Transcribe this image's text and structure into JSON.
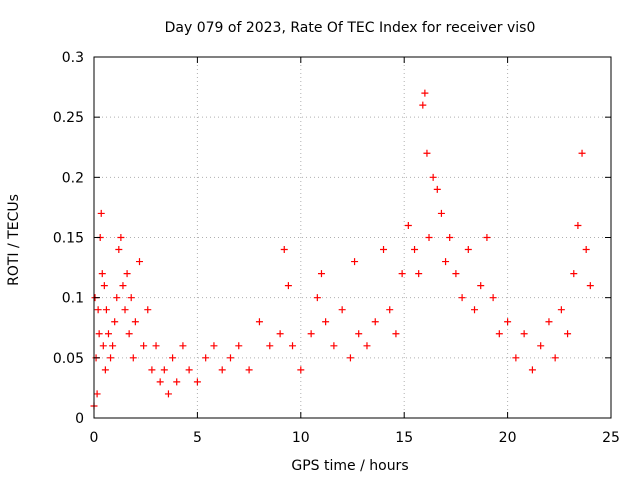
{
  "chart_data": {
    "type": "scatter",
    "title": "Day 079 of 2023, Rate Of TEC Index for receiver vis0",
    "xlabel": "GPS time / hours",
    "ylabel": "ROTI / TECUs",
    "xlim": [
      0,
      25
    ],
    "ylim": [
      0,
      0.3
    ],
    "x_ticks": [
      0,
      5,
      10,
      15,
      20,
      25
    ],
    "x_tick_labels": [
      "0",
      "5",
      "10",
      "15",
      "20",
      "25"
    ],
    "y_ticks": [
      0,
      0.05,
      0.1,
      0.15,
      0.2,
      0.25,
      0.3
    ],
    "y_tick_labels": [
      "0",
      "0.05",
      "0.1",
      "0.15",
      "0.2",
      "0.25",
      "0.3"
    ],
    "grid": true,
    "marker": "+",
    "color": "#ff0000",
    "series": [
      {
        "name": "ROTI",
        "x": [
          0.0,
          0.05,
          0.1,
          0.15,
          0.2,
          0.25,
          0.3,
          0.35,
          0.4,
          0.45,
          0.5,
          0.55,
          0.6,
          0.7,
          0.8,
          0.9,
          1.0,
          1.1,
          1.2,
          1.3,
          1.4,
          1.5,
          1.6,
          1.7,
          1.8,
          1.9,
          2.0,
          2.2,
          2.4,
          2.6,
          2.8,
          3.0,
          3.2,
          3.4,
          3.6,
          3.8,
          4.0,
          4.3,
          4.6,
          5.0,
          5.4,
          5.8,
          6.2,
          6.6,
          7.0,
          7.5,
          8.0,
          8.5,
          9.0,
          9.2,
          9.4,
          9.6,
          10.0,
          10.5,
          10.8,
          11.0,
          11.2,
          11.6,
          12.0,
          12.4,
          12.6,
          12.8,
          13.2,
          13.6,
          14.0,
          14.3,
          14.6,
          14.9,
          15.2,
          15.5,
          15.7,
          15.9,
          16.0,
          16.1,
          16.2,
          16.4,
          16.6,
          16.8,
          17.0,
          17.2,
          17.5,
          17.8,
          18.1,
          18.4,
          18.7,
          19.0,
          19.3,
          19.6,
          20.0,
          20.4,
          20.8,
          21.2,
          21.6,
          22.0,
          22.3,
          22.6,
          22.9,
          23.2,
          23.4,
          23.6,
          23.8,
          24.0
        ],
        "y": [
          0.01,
          0.1,
          0.05,
          0.02,
          0.09,
          0.07,
          0.15,
          0.17,
          0.12,
          0.06,
          0.11,
          0.04,
          0.09,
          0.07,
          0.05,
          0.06,
          0.08,
          0.1,
          0.14,
          0.15,
          0.11,
          0.09,
          0.12,
          0.07,
          0.1,
          0.05,
          0.08,
          0.13,
          0.06,
          0.09,
          0.04,
          0.06,
          0.03,
          0.04,
          0.02,
          0.05,
          0.03,
          0.06,
          0.04,
          0.03,
          0.05,
          0.06,
          0.04,
          0.05,
          0.06,
          0.04,
          0.08,
          0.06,
          0.07,
          0.14,
          0.11,
          0.06,
          0.04,
          0.07,
          0.1,
          0.12,
          0.08,
          0.06,
          0.09,
          0.05,
          0.13,
          0.07,
          0.06,
          0.08,
          0.14,
          0.09,
          0.07,
          0.12,
          0.16,
          0.14,
          0.12,
          0.26,
          0.27,
          0.22,
          0.15,
          0.2,
          0.19,
          0.17,
          0.13,
          0.15,
          0.12,
          0.1,
          0.14,
          0.09,
          0.11,
          0.15,
          0.1,
          0.07,
          0.08,
          0.05,
          0.07,
          0.04,
          0.06,
          0.08,
          0.05,
          0.09,
          0.07,
          0.12,
          0.16,
          0.22,
          0.14,
          0.11
        ]
      }
    ]
  }
}
